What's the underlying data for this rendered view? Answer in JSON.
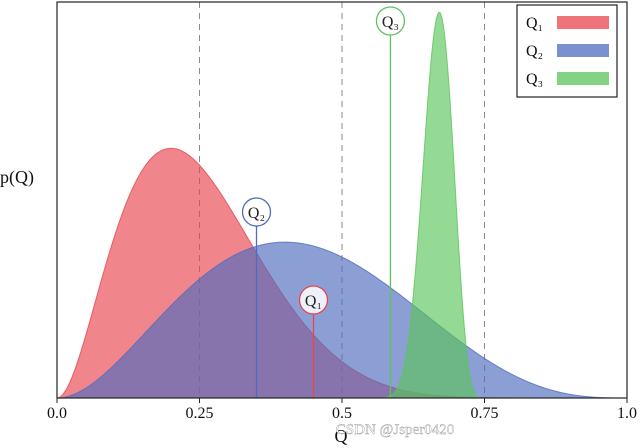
{
  "chart_data": {
    "type": "area",
    "title": "",
    "xlabel": "Q",
    "ylabel": "p(Q)",
    "xlim": [
      0.0,
      1.0
    ],
    "ylim": [
      0.0,
      5.9
    ],
    "x_ticks": [
      "0.0",
      "0.25",
      "0.5",
      "0.75",
      "1.0"
    ],
    "x_tick_values": [
      0.0,
      0.25,
      0.5,
      0.75,
      1.0
    ],
    "vertical_dashed_lines": [
      0.25,
      0.5,
      0.75
    ],
    "legend_position": "top-right",
    "series": [
      {
        "name": "Q₁",
        "color": "#e8444f",
        "alpha": 0.65,
        "dist": "beta",
        "a": 3,
        "b": 9,
        "scale": 1.12,
        "marker_x": 0.45,
        "marker_label": "Q₁"
      },
      {
        "name": "Q₂",
        "color": "#4f6bbf",
        "alpha": 0.65,
        "dist": "beta",
        "a": 3,
        "b": 4,
        "scale": 1.12,
        "marker_x": 0.35,
        "marker_label": "Q₂"
      },
      {
        "name": "Q₃",
        "color": "#5bc45b",
        "alpha": 0.65,
        "dist": "beta",
        "a": 11,
        "b": 7,
        "scale": 1.0,
        "marker_x": 0.585,
        "marker_label": "Q₃",
        "support": [
          0.53,
          0.755
        ]
      }
    ]
  },
  "watermark": "CSDN @Jsper0420"
}
